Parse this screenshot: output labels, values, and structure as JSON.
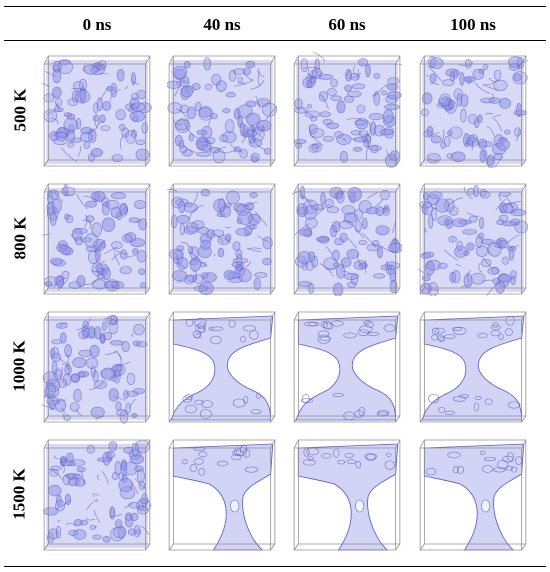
{
  "columns": [
    "0 ns",
    "40 ns",
    "60 ns",
    "100 ns"
  ],
  "rows": [
    "500 K",
    "800 K",
    "1000 K",
    "1500 K"
  ],
  "cell_states": [
    [
      "dense",
      "dense",
      "dense",
      "dense"
    ],
    [
      "dense",
      "dense",
      "dense",
      "dense"
    ],
    [
      "dense",
      "neck",
      "neck",
      "neck"
    ],
    [
      "dense",
      "coarse",
      "coarse",
      "coarse"
    ]
  ],
  "colors": {
    "structure_fill": "#8f93e6",
    "structure_stroke": "#5b5fc4",
    "box_edge": "#8a8a8a",
    "rule": "#000000"
  }
}
